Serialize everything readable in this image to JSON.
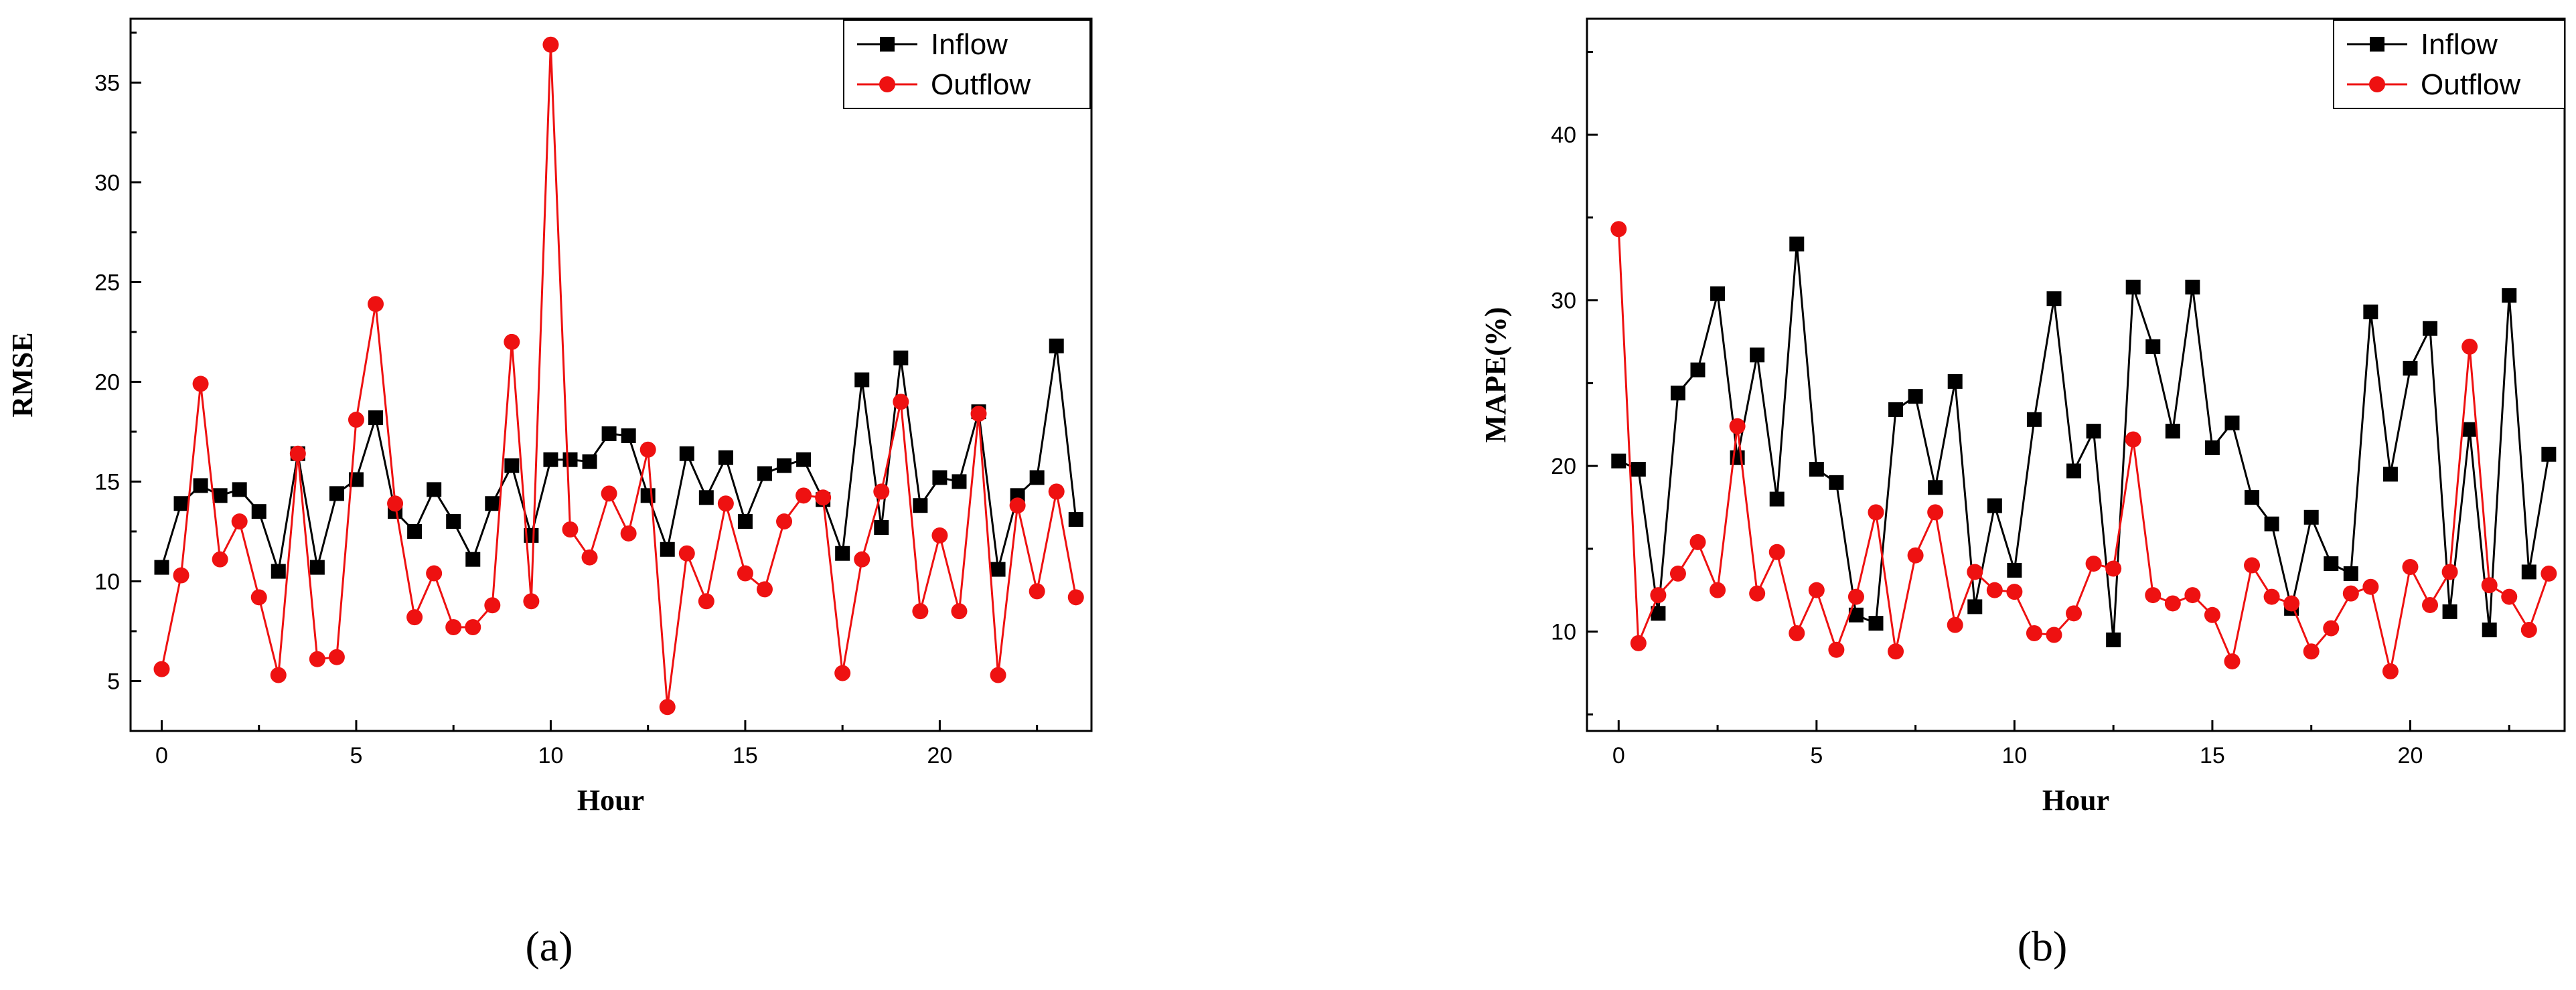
{
  "chart_data": [
    {
      "type": "line",
      "panel_label": "(a)",
      "title": "",
      "xlabel": "Hour",
      "ylabel": "RMSE",
      "xlim": [
        -0.8,
        23.9
      ],
      "ylim": [
        2.5,
        38.2
      ],
      "xticks": [
        0,
        5,
        10,
        15,
        20
      ],
      "yticks": [
        5,
        10,
        15,
        20,
        25,
        30,
        35
      ],
      "grid": false,
      "legend_position": "top-right",
      "x": [
        0,
        0.5,
        1,
        1.5,
        2,
        2.5,
        3,
        3.5,
        4,
        4.5,
        5,
        5.5,
        6,
        6.5,
        7,
        7.5,
        8,
        8.5,
        9,
        9.5,
        10,
        10.5,
        11,
        11.5,
        12,
        12.5,
        13,
        13.5,
        14,
        14.5,
        15,
        15.5,
        16,
        16.5,
        17,
        17.5,
        18,
        18.5,
        19,
        19.5,
        20,
        20.5,
        21,
        21.5,
        22,
        22.5,
        23,
        23.5
      ],
      "series": [
        {
          "name": "Inflow",
          "color": "#000000",
          "marker": "square",
          "values": [
            10.7,
            13.9,
            14.8,
            14.3,
            14.6,
            13.5,
            10.5,
            16.4,
            10.7,
            14.4,
            15.1,
            18.2,
            13.5,
            12.5,
            14.6,
            13.0,
            11.1,
            13.9,
            15.8,
            12.3,
            16.1,
            16.1,
            16.0,
            17.4,
            17.3,
            14.3,
            11.6,
            16.4,
            14.2,
            16.2,
            13.0,
            15.4,
            15.8,
            16.1,
            14.1,
            11.4,
            20.1,
            12.7,
            21.2,
            13.8,
            15.2,
            15.0,
            18.5,
            10.6,
            14.3,
            15.2,
            21.8,
            13.1
          ]
        },
        {
          "name": "Outflow",
          "color": "#ee1111",
          "marker": "circle",
          "values": [
            5.6,
            10.3,
            19.9,
            11.1,
            13.0,
            9.2,
            5.3,
            16.4,
            6.1,
            6.2,
            18.1,
            23.9,
            13.9,
            8.2,
            10.4,
            7.7,
            7.7,
            8.8,
            22.0,
            9.0,
            36.9,
            12.6,
            11.2,
            14.4,
            12.4,
            16.6,
            3.7,
            11.4,
            9.0,
            13.9,
            10.4,
            9.6,
            13.0,
            14.3,
            14.2,
            5.4,
            11.1,
            14.5,
            19.0,
            8.5,
            12.3,
            8.5,
            18.4,
            5.3,
            13.8,
            9.5,
            14.5,
            9.2
          ]
        }
      ]
    },
    {
      "type": "line",
      "panel_label": "(b)",
      "title": "",
      "xlabel": "Hour",
      "ylabel": "MAPE(%)",
      "xlim": [
        -0.8,
        23.9
      ],
      "ylim": [
        4,
        47
      ],
      "xticks": [
        0,
        5,
        10,
        15,
        20
      ],
      "yticks": [
        10,
        20,
        30,
        40
      ],
      "grid": false,
      "legend_position": "top-right",
      "x": [
        0,
        0.5,
        1,
        1.5,
        2,
        2.5,
        3,
        3.5,
        4,
        4.5,
        5,
        5.5,
        6,
        6.5,
        7,
        7.5,
        8,
        8.5,
        9,
        9.5,
        10,
        10.5,
        11,
        11.5,
        12,
        12.5,
        13,
        13.5,
        14,
        14.5,
        15,
        15.5,
        16,
        16.5,
        17,
        17.5,
        18,
        18.5,
        19,
        19.5,
        20,
        20.5,
        21,
        21.5,
        22,
        22.5,
        23,
        23.5
      ],
      "series": [
        {
          "name": "Inflow",
          "color": "#000000",
          "marker": "square",
          "values": [
            20.3,
            19.8,
            11.1,
            24.4,
            25.8,
            30.4,
            20.5,
            26.7,
            18.0,
            33.4,
            19.8,
            19.0,
            11.0,
            10.5,
            23.4,
            24.2,
            18.7,
            25.1,
            11.5,
            17.6,
            13.7,
            22.8,
            30.1,
            19.7,
            22.1,
            9.5,
            30.8,
            27.2,
            22.1,
            30.8,
            21.1,
            22.6,
            18.1,
            16.5,
            11.4,
            16.9,
            14.1,
            13.5,
            29.3,
            19.5,
            25.9,
            28.3,
            11.2,
            22.2,
            10.1,
            30.3,
            13.6,
            20.7
          ]
        },
        {
          "name": "Outflow",
          "color": "#ee1111",
          "marker": "circle",
          "values": [
            34.3,
            9.3,
            12.2,
            13.5,
            15.4,
            12.5,
            22.4,
            12.3,
            14.8,
            9.9,
            12.5,
            8.9,
            12.1,
            17.2,
            8.8,
            14.6,
            17.2,
            10.4,
            13.6,
            12.5,
            12.4,
            9.9,
            9.8,
            11.1,
            14.1,
            13.8,
            21.6,
            12.2,
            11.7,
            12.2,
            11.0,
            8.2,
            14.0,
            12.1,
            11.7,
            8.8,
            10.2,
            12.3,
            12.7,
            7.6,
            13.9,
            11.6,
            13.6,
            27.2,
            12.8,
            12.1,
            10.1,
            13.5
          ]
        }
      ]
    }
  ]
}
